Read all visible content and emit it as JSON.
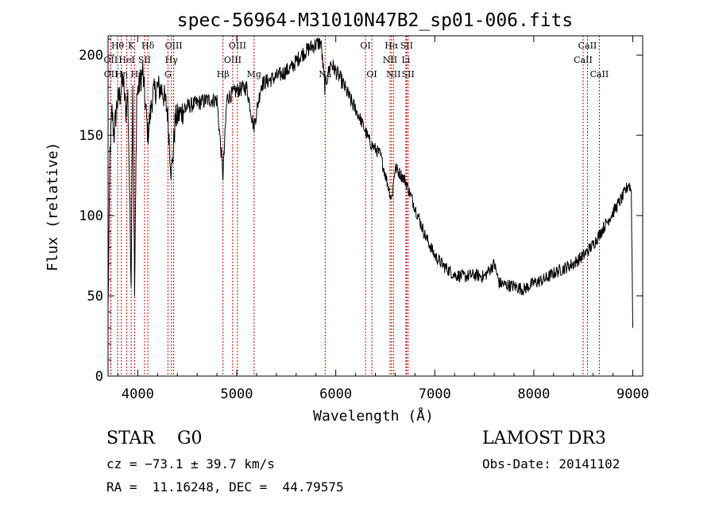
{
  "chart_data": {
    "type": "line",
    "title": "spec-56964-M31010N47B2_sp01-006.fits",
    "xlabel": "Wavelength (Å)",
    "ylabel": "Flux (relative)",
    "xlim": [
      3700,
      9100
    ],
    "ylim": [
      0,
      212
    ],
    "xticks": [
      4000,
      5000,
      6000,
      7000,
      8000,
      9000
    ],
    "yticks": [
      0,
      50,
      100,
      150,
      200
    ],
    "grid": false,
    "series": [
      {
        "name": "flux",
        "anchors": [
          [
            3700,
            40
          ],
          [
            3720,
            140
          ],
          [
            3740,
            165
          ],
          [
            3760,
            150
          ],
          [
            3790,
            170
          ],
          [
            3820,
            175
          ],
          [
            3850,
            185
          ],
          [
            3880,
            165
          ],
          [
            3900,
            175
          ],
          [
            3933,
            60
          ],
          [
            3950,
            185
          ],
          [
            3968,
            50
          ],
          [
            3990,
            175
          ],
          [
            4050,
            190
          ],
          [
            4102,
            150
          ],
          [
            4150,
            175
          ],
          [
            4200,
            180
          ],
          [
            4250,
            178
          ],
          [
            4300,
            165
          ],
          [
            4340,
            125
          ],
          [
            4380,
            160
          ],
          [
            4450,
            165
          ],
          [
            4500,
            168
          ],
          [
            4600,
            170
          ],
          [
            4700,
            172
          ],
          [
            4800,
            172
          ],
          [
            4861,
            125
          ],
          [
            4900,
            173
          ],
          [
            5000,
            178
          ],
          [
            5100,
            180
          ],
          [
            5172,
            155
          ],
          [
            5250,
            182
          ],
          [
            5350,
            185
          ],
          [
            5450,
            188
          ],
          [
            5550,
            192
          ],
          [
            5650,
            200
          ],
          [
            5750,
            205
          ],
          [
            5850,
            208
          ],
          [
            5890,
            180
          ],
          [
            5950,
            195
          ],
          [
            6050,
            185
          ],
          [
            6150,
            172
          ],
          [
            6250,
            160
          ],
          [
            6350,
            145
          ],
          [
            6450,
            138
          ],
          [
            6563,
            110
          ],
          [
            6600,
            130
          ],
          [
            6700,
            122
          ],
          [
            6800,
            105
          ],
          [
            6900,
            88
          ],
          [
            7000,
            75
          ],
          [
            7100,
            68
          ],
          [
            7200,
            63
          ],
          [
            7300,
            62
          ],
          [
            7400,
            63
          ],
          [
            7500,
            62
          ],
          [
            7600,
            70
          ],
          [
            7650,
            58
          ],
          [
            7700,
            57
          ],
          [
            7800,
            56
          ],
          [
            7900,
            54
          ],
          [
            8000,
            58
          ],
          [
            8100,
            60
          ],
          [
            8200,
            64
          ],
          [
            8300,
            67
          ],
          [
            8400,
            70
          ],
          [
            8500,
            75
          ],
          [
            8600,
            82
          ],
          [
            8700,
            92
          ],
          [
            8800,
            102
          ],
          [
            8900,
            112
          ],
          [
            8960,
            120
          ],
          [
            8985,
            115
          ],
          [
            9000,
            30
          ]
        ]
      }
    ],
    "lines": [
      {
        "label": "Hθ",
        "x": 3797,
        "row": 0
      },
      {
        "label": "K",
        "x": 3934,
        "row": 0
      },
      {
        "label": "Hδ",
        "x": 4102,
        "row": 0
      },
      {
        "label": "OIII",
        "x": 4363,
        "row": 0
      },
      {
        "label": "OIII",
        "x": 5007,
        "row": 0
      },
      {
        "label": "OI",
        "x": 6300,
        "row": 0
      },
      {
        "label": "Hα",
        "x": 6563,
        "row": 0
      },
      {
        "label": "SII",
        "x": 6716,
        "row": 0
      },
      {
        "label": "CaII",
        "x": 8542,
        "row": 0
      },
      {
        "label": "OII",
        "x": 3727,
        "row": 1
      },
      {
        "label": "HeI",
        "x": 3889,
        "row": 1
      },
      {
        "label": "SII",
        "x": 4069,
        "row": 1
      },
      {
        "label": "Hγ",
        "x": 4340,
        "row": 1
      },
      {
        "label": "OIII",
        "x": 4959,
        "row": 1
      },
      {
        "label": "NII",
        "x": 6548,
        "row": 1
      },
      {
        "label": "Li",
        "x": 6708,
        "row": 1
      },
      {
        "label": "CaII",
        "x": 8498,
        "row": 1
      },
      {
        "label": "OII",
        "x": 3729,
        "row": 2
      },
      {
        "label": "Hη",
        "x": 3835,
        "row": 2
      },
      {
        "label": "H",
        "x": 3968,
        "row": 2
      },
      {
        "label": "G",
        "x": 4305,
        "row": 2
      },
      {
        "label": "Hβ",
        "x": 4861,
        "row": 2
      },
      {
        "label": "Mg",
        "x": 5175,
        "row": 2
      },
      {
        "label": "Na",
        "x": 5893,
        "row": 2
      },
      {
        "label": "OI",
        "x": 6364,
        "row": 2
      },
      {
        "label": "NII",
        "x": 6583,
        "row": 2
      },
      {
        "label": "SII",
        "x": 6731,
        "row": 2
      },
      {
        "label": "CaII",
        "x": 8662,
        "row": 2
      }
    ]
  },
  "info": {
    "class_line": "STAR    G0",
    "survey": "LAMOST DR3",
    "cz": "cz = −73.1 ± 39.7 km/s",
    "obs_date": "Obs-Date: 20141102",
    "radec": "RA =  11.16248, DEC =  44.79575"
  },
  "colors": {
    "line_marker": "#cc0000",
    "spectrum": "#000000"
  }
}
